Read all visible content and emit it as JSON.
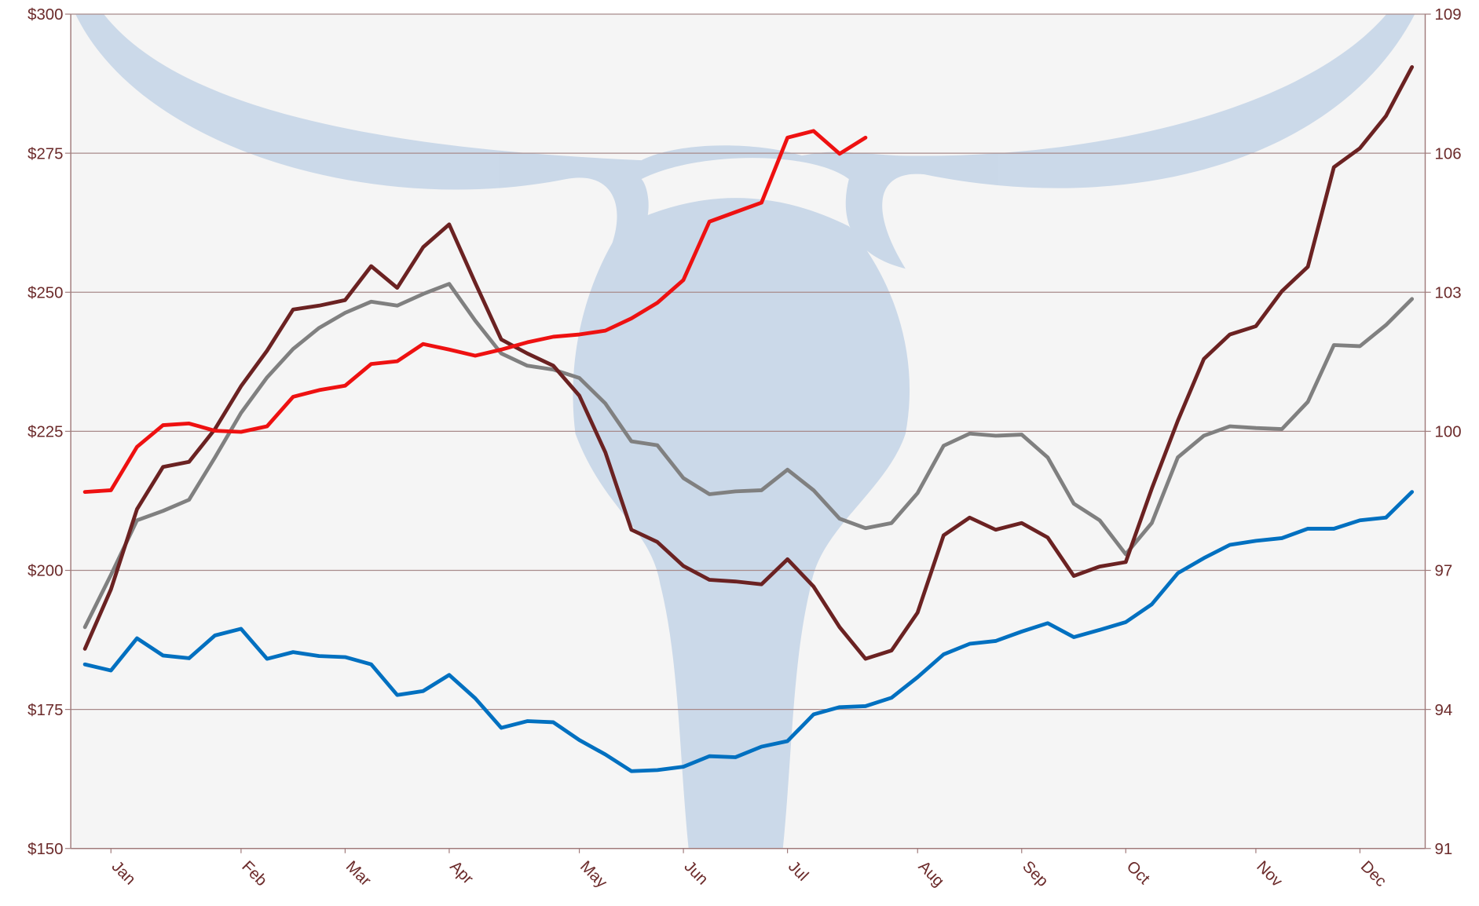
{
  "chart_data": {
    "type": "line",
    "x": [
      1,
      2,
      3,
      4,
      5,
      6,
      7,
      8,
      9,
      10,
      11,
      12,
      13,
      14,
      15,
      16,
      17,
      18,
      19,
      20,
      21,
      22,
      23,
      24,
      25,
      26,
      27,
      28,
      29,
      30,
      31,
      32,
      33,
      34,
      35,
      36,
      37,
      38,
      39,
      40,
      41,
      42,
      43,
      44,
      45,
      46,
      47,
      48,
      49,
      50,
      51,
      52
    ],
    "xlim": [
      1,
      52
    ],
    "xticks": [
      {
        "value": 2,
        "label": "Jan"
      },
      {
        "value": 7,
        "label": "Feb"
      },
      {
        "value": 11,
        "label": "Mar"
      },
      {
        "value": 15,
        "label": "Apr"
      },
      {
        "value": 20,
        "label": "May"
      },
      {
        "value": 24,
        "label": "Jun"
      },
      {
        "value": 28,
        "label": "Jul"
      },
      {
        "value": 33,
        "label": "Aug"
      },
      {
        "value": 37,
        "label": "Sep"
      },
      {
        "value": 41,
        "label": "Oct"
      },
      {
        "value": 46,
        "label": "Nov"
      },
      {
        "value": 50,
        "label": "Dec"
      }
    ],
    "ylim": [
      150,
      300
    ],
    "yticks": [
      {
        "value": 150,
        "label": "$150"
      },
      {
        "value": 175,
        "label": "$175"
      },
      {
        "value": 200,
        "label": "$200"
      },
      {
        "value": 225,
        "label": "$225"
      },
      {
        "value": 250,
        "label": "$250"
      },
      {
        "value": 275,
        "label": "$275"
      },
      {
        "value": 300,
        "label": "$300"
      }
    ],
    "y2lim": [
      91,
      109
    ],
    "y2ticks": [
      91,
      94,
      97,
      100,
      103,
      106,
      109
    ],
    "grid": true,
    "series": [
      {
        "color": "#0070c0",
        "values": [
          183.1,
          182.0,
          187.8,
          184.7,
          184.2,
          188.3,
          189.5,
          184.1,
          185.3,
          184.6,
          184.4,
          183.1,
          177.6,
          178.3,
          181.2,
          177.0,
          171.7,
          172.9,
          172.7,
          169.5,
          166.9,
          163.9,
          164.1,
          164.7,
          166.6,
          166.4,
          168.3,
          169.3,
          174.1,
          175.4,
          175.6,
          177.1,
          180.8,
          184.9,
          186.8,
          187.3,
          189.0,
          190.5,
          188.0,
          189.3,
          190.7,
          193.9,
          199.5,
          202.2,
          204.6,
          205.3,
          205.8,
          207.5,
          207.5,
          209.0,
          209.5,
          214.1
        ]
      },
      {
        "color": "#808080",
        "values": [
          189.8,
          199.2,
          209.0,
          210.7,
          212.7,
          220.3,
          228.3,
          234.7,
          239.8,
          243.6,
          246.3,
          248.3,
          247.6,
          249.7,
          251.5,
          244.9,
          239.0,
          236.8,
          236.1,
          234.6,
          230.0,
          223.2,
          222.5,
          216.6,
          213.7,
          214.2,
          214.4,
          218.1,
          214.4,
          209.3,
          207.6,
          208.5,
          213.9,
          222.4,
          224.6,
          224.2,
          224.4,
          220.3,
          212.0,
          209.0,
          202.9,
          208.5,
          220.3,
          224.2,
          225.9,
          225.6,
          225.4,
          230.3,
          240.5,
          240.3,
          244.1,
          248.8
        ]
      },
      {
        "color": "#6b2222",
        "values": [
          185.9,
          196.6,
          211.0,
          218.6,
          219.5,
          225.4,
          233.1,
          239.5,
          246.9,
          247.6,
          248.6,
          254.7,
          250.8,
          258.1,
          262.2,
          251.7,
          241.5,
          239.0,
          236.8,
          231.4,
          221.2,
          207.3,
          205.1,
          200.8,
          198.3,
          198.0,
          197.5,
          202.0,
          197.1,
          189.8,
          184.1,
          185.6,
          192.4,
          206.3,
          209.5,
          207.3,
          208.5,
          205.9,
          199.0,
          200.7,
          201.5,
          214.7,
          226.9,
          238.0,
          242.4,
          243.9,
          250.2,
          254.6,
          272.5,
          275.9,
          281.7,
          290.5
        ]
      },
      {
        "color": "#ee1111",
        "values": [
          214.1,
          214.4,
          222.2,
          226.1,
          226.4,
          225.1,
          224.9,
          225.9,
          231.2,
          232.4,
          233.2,
          237.1,
          237.6,
          240.7,
          239.7,
          238.6,
          239.7,
          241.0,
          242.0,
          242.4,
          243.1,
          245.3,
          248.1,
          252.2,
          262.7,
          264.4,
          266.1,
          277.8,
          279.0,
          274.9,
          277.8,
          null,
          null,
          null,
          null,
          null,
          null,
          null,
          null,
          null,
          null,
          null,
          null,
          null,
          null,
          null,
          null,
          null,
          null,
          null,
          null,
          null
        ]
      }
    ]
  }
}
